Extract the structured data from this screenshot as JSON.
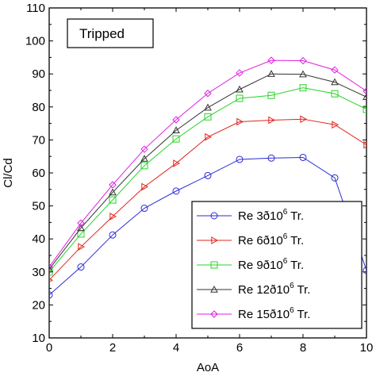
{
  "chart_data": {
    "type": "line",
    "xlabel": "AoA",
    "ylabel": "Cl/Cd",
    "xlim": [
      0,
      10
    ],
    "ylim": [
      10,
      110
    ],
    "xticks": [
      0,
      2,
      4,
      6,
      8,
      10
    ],
    "yticks": [
      10,
      20,
      30,
      40,
      50,
      60,
      70,
      80,
      90,
      100,
      110
    ],
    "grid": false,
    "legend_position": "bottom-right",
    "annotation": "Tripped",
    "series": [
      {
        "name": "Re 3ð10",
        "sup": "6",
        "suffix": " Tr.",
        "color": "#2b2bd6",
        "marker": "circle",
        "x": [
          0,
          1,
          2,
          3,
          4,
          5,
          6,
          7,
          8,
          9,
          10
        ],
        "y": [
          23,
          31.5,
          41.2,
          49.3,
          54.5,
          59.2,
          64.1,
          64.5,
          64.7,
          58.5,
          30.5
        ]
      },
      {
        "name": "Re 6ð10",
        "sup": "6",
        "suffix": " Tr.",
        "color": "#e0251b",
        "marker": "triangle-right",
        "x": [
          0,
          1,
          2,
          3,
          4,
          5,
          6,
          7,
          8,
          9,
          10
        ],
        "y": [
          27.5,
          37.6,
          46.8,
          55.8,
          62.9,
          70.9,
          75.5,
          76.0,
          76.3,
          74.6,
          68.5
        ]
      },
      {
        "name": "Re 9ð10",
        "sup": "6",
        "suffix": " Tr.",
        "color": "#27d427",
        "marker": "square",
        "x": [
          0,
          1,
          2,
          3,
          4,
          5,
          6,
          7,
          8,
          9,
          10
        ],
        "y": [
          30,
          41.5,
          51.8,
          62.2,
          70.3,
          77.0,
          82.6,
          83.5,
          85.8,
          84.0,
          79.3
        ]
      },
      {
        "name": "Re 12ð10",
        "sup": "6",
        "suffix": " Tr.",
        "color": "#333333",
        "marker": "triangle-up",
        "x": [
          0,
          1,
          2,
          3,
          4,
          5,
          6,
          7,
          8,
          9,
          10
        ],
        "y": [
          30.8,
          43.3,
          54.1,
          64.3,
          72.9,
          79.8,
          85.3,
          90.0,
          89.9,
          87.5,
          83.0
        ]
      },
      {
        "name": "Re 15ð10",
        "sup": "6",
        "suffix": " Tr.",
        "color": "#e01ee0",
        "marker": "diamond",
        "x": [
          0,
          1,
          2,
          3,
          4,
          5,
          6,
          7,
          8,
          9,
          10
        ],
        "y": [
          31.5,
          44.8,
          56.4,
          67.2,
          76.1,
          84.1,
          90.3,
          94.1,
          94.0,
          91.2,
          84.8
        ]
      }
    ]
  }
}
